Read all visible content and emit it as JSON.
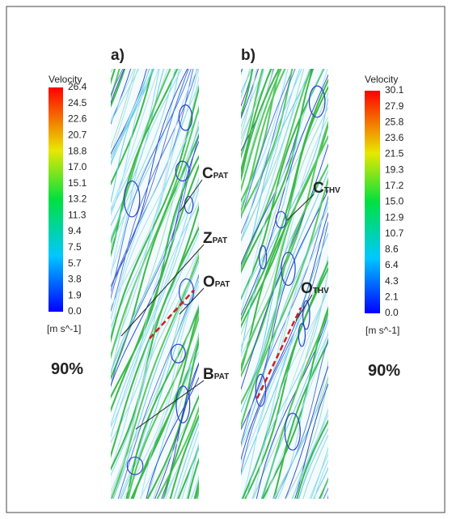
{
  "panels": [
    {
      "label": "a)",
      "colorbar": {
        "title": "Velocity",
        "ticks": [
          "26.4",
          "24.5",
          "22.6",
          "20.7",
          "18.8",
          "17.0",
          "15.1",
          "13.2",
          "11.3",
          "9.4",
          "7.5",
          "5.7",
          "3.8",
          "1.9",
          "0.0"
        ],
        "unit": "[m s^-1]"
      },
      "percent": "90%",
      "annotations": [
        {
          "letter": "C",
          "subscript": "PAT"
        },
        {
          "letter": "Z",
          "subscript": "PAT"
        },
        {
          "letter": "O",
          "subscript": "PAT"
        },
        {
          "letter": "B",
          "subscript": "PAT"
        }
      ]
    },
    {
      "label": "b)",
      "colorbar": {
        "title": "Velocity",
        "ticks": [
          "30.1",
          "27.9",
          "25.8",
          "23.6",
          "21.5",
          "19.3",
          "17.2",
          "15.0",
          "12.9",
          "10.7",
          "8.6",
          "6.4",
          "4.3",
          "2.1",
          "0.0"
        ],
        "unit": "[m s^-1]"
      },
      "percent": "90%",
      "annotations": [
        {
          "letter": "C",
          "subscript": "THV"
        },
        {
          "letter": "O",
          "subscript": "THV"
        }
      ]
    }
  ]
}
